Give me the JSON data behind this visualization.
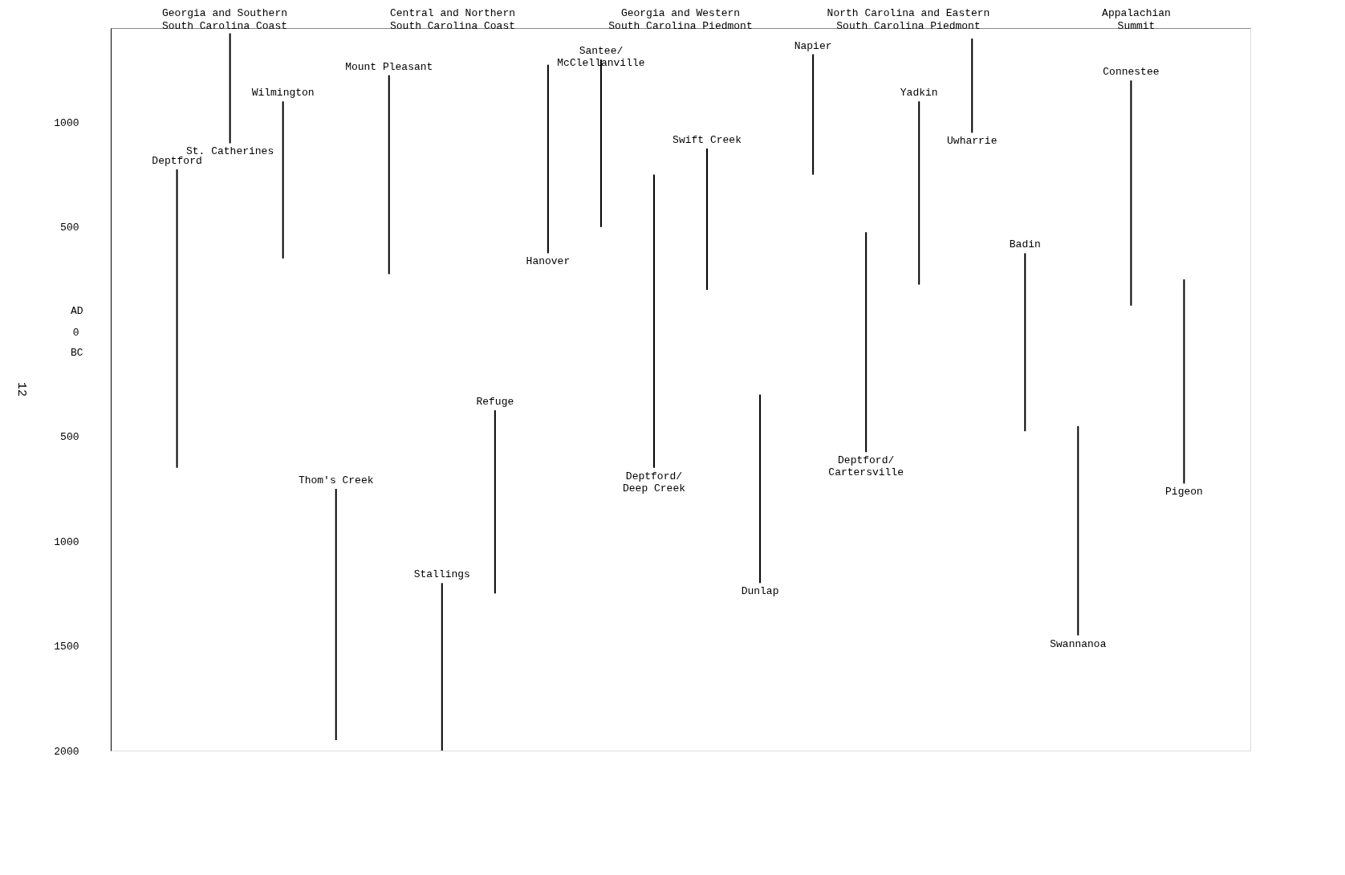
{
  "chart_data": {
    "type": "bar",
    "categories": [
      "Deptford",
      "St. Catherines",
      "Wilmington",
      "Thom's Creek",
      "Mount Pleasant",
      "Stallings",
      "Refuge",
      "Hanover",
      "Santee/McClellanville",
      "Deptford/Deep Creek",
      "Swift Creek",
      "Dunlap",
      "Napier",
      "Deptford/Cartersville",
      "Yadkin",
      "Uwharrie",
      "Badin",
      "Swannanoa",
      "Connestee",
      "Pigeon"
    ],
    "base": [
      -650,
      900,
      350,
      -1950,
      275,
      -2000,
      -1250,
      375,
      500,
      -650,
      200,
      -1200,
      750,
      -575,
      225,
      950,
      -475,
      -1450,
      125,
      -725
    ],
    "values": [
      1425,
      525,
      750,
      1200,
      950,
      800,
      875,
      900,
      800,
      1400,
      675,
      900,
      575,
      1050,
      875,
      450,
      850,
      1000,
      1075,
      975
    ],
    "color": "#000000",
    "ylim": [
      -2000,
      1450
    ],
    "yticks": [
      1000,
      500,
      0,
      {
        "value": -500,
        "label": "500"
      },
      {
        "value": -1000,
        "label": "1000"
      },
      {
        "value": -1500,
        "label": "1500"
      },
      {
        "value": -2000,
        "label": "2000"
      }
    ],
    "tick_labels": "y",
    "grid": false,
    "annotations": [
      "Georgia and Southern\nSouth Carolina Coast",
      "Central and Northern\nSouth Carolina Coast",
      "Georgia and Western\nSouth Carolina Piedmont",
      "North Carolina and Eastern\nSouth Carolina Piedmont",
      "Appalachian\nSummit",
      "AD",
      "BC",
      "12"
    ]
  }
}
